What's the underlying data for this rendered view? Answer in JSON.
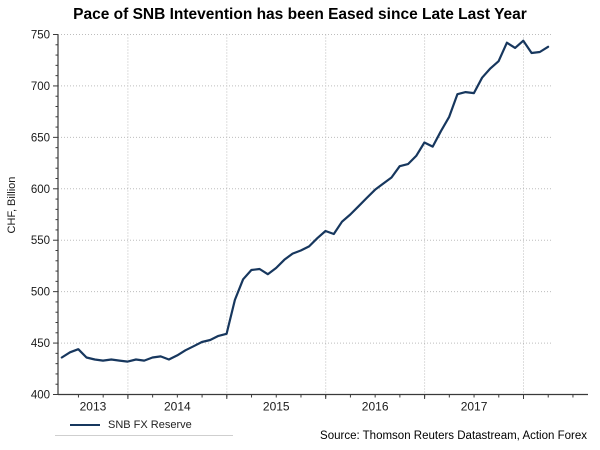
{
  "title": "Pace of SNB Intevention has been Eased since Late Last Year",
  "source": "Source: Thomson Reuters Datastream, Action Forex",
  "legend": {
    "label": "SNB FX Reserve"
  },
  "y_axis": {
    "label": "CHF, Billion"
  },
  "colors": {
    "line": "#17375e",
    "grid": "#bdbdbd",
    "axis": "#3a3a3a",
    "tick_text": "#1a1a1a"
  },
  "chart_data": {
    "type": "line",
    "title": "Pace of SNB Intevention has been Eased since Late Last Year",
    "ylabel": "CHF, Billion",
    "xlabel": "",
    "ylim": [
      400,
      750
    ],
    "y_major_step": 50,
    "y_minor_step": 10,
    "grid": "dotted horizontal at 50s, dotted vertical at year boundaries",
    "legend_position": "bottom-left",
    "x_year_labels": [
      2013,
      2014,
      2015,
      2016,
      2017
    ],
    "series": [
      {
        "name": "SNB FX Reserve",
        "x": [
          "2013-04",
          "2013-05",
          "2013-06",
          "2013-07",
          "2013-08",
          "2013-09",
          "2013-10",
          "2013-11",
          "2013-12",
          "2014-01",
          "2014-02",
          "2014-03",
          "2014-04",
          "2014-05",
          "2014-06",
          "2014-07",
          "2014-08",
          "2014-09",
          "2014-10",
          "2014-11",
          "2014-12",
          "2015-01",
          "2015-02",
          "2015-03",
          "2015-04",
          "2015-05",
          "2015-06",
          "2015-07",
          "2015-08",
          "2015-09",
          "2015-10",
          "2015-11",
          "2015-12",
          "2016-01",
          "2016-02",
          "2016-03",
          "2016-04",
          "2016-05",
          "2016-06",
          "2016-07",
          "2016-08",
          "2016-09",
          "2016-10",
          "2016-11",
          "2016-12",
          "2017-01",
          "2017-02",
          "2017-03",
          "2017-04",
          "2017-05",
          "2017-06",
          "2017-07",
          "2017-08",
          "2017-09",
          "2017-10",
          "2017-11",
          "2017-12",
          "2018-01",
          "2018-02",
          "2018-03"
        ],
        "values": [
          436,
          441,
          444,
          436,
          434,
          433,
          434,
          433,
          432,
          434,
          433,
          436,
          437,
          434,
          438,
          443,
          447,
          451,
          453,
          457,
          459,
          492,
          512,
          521,
          522,
          517,
          523,
          531,
          537,
          540,
          544,
          552,
          559,
          556,
          568,
          575,
          583,
          591,
          599,
          605,
          611,
          622,
          624,
          632,
          645,
          641,
          656,
          670,
          692,
          694,
          693,
          708,
          717,
          724,
          742,
          737,
          744,
          732,
          733,
          738
        ]
      }
    ]
  }
}
